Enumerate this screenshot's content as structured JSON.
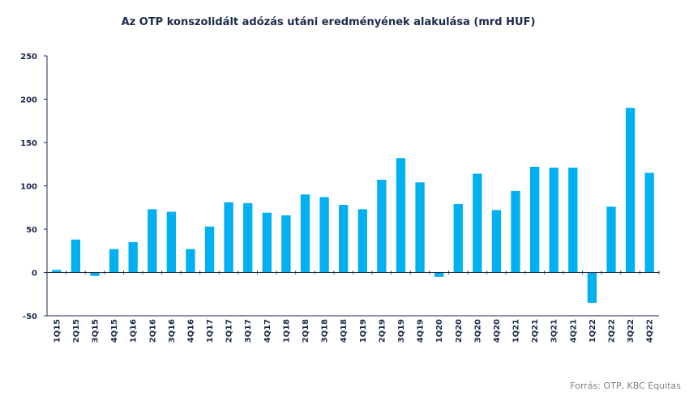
{
  "chart_data": {
    "type": "bar",
    "title": "Az OTP konszolidált adózás utáni eredményének  alakulása (mrd HUF)",
    "xlabel": "",
    "ylabel": "",
    "ylim": [
      -50,
      250
    ],
    "yticks": [
      -50,
      0,
      50,
      100,
      150,
      200,
      250
    ],
    "grid": false,
    "bar_color": "#00b0f0",
    "categories": [
      "1Q15",
      "2Q15",
      "3Q15",
      "4Q15",
      "1Q16",
      "2Q16",
      "3Q16",
      "4Q16",
      "1Q17",
      "2Q17",
      "3Q17",
      "4Q17",
      "1Q18",
      "2Q18",
      "3Q18",
      "4Q18",
      "1Q19",
      "2Q19",
      "3Q19",
      "4Q19",
      "1Q20",
      "2Q20",
      "3Q20",
      "4Q20",
      "1Q21",
      "2Q21",
      "3Q21",
      "4Q21",
      "1Q22",
      "2Q22",
      "3Q22",
      "4Q22"
    ],
    "values": [
      3,
      38,
      -4,
      27,
      35,
      73,
      70,
      27,
      53,
      81,
      80,
      69,
      66,
      90,
      87,
      78,
      73,
      107,
      132,
      104,
      -5,
      79,
      114,
      72,
      94,
      122,
      121,
      121,
      -35,
      76,
      190,
      115
    ]
  },
  "source": "Forrás: OTP, KBC Equitas"
}
